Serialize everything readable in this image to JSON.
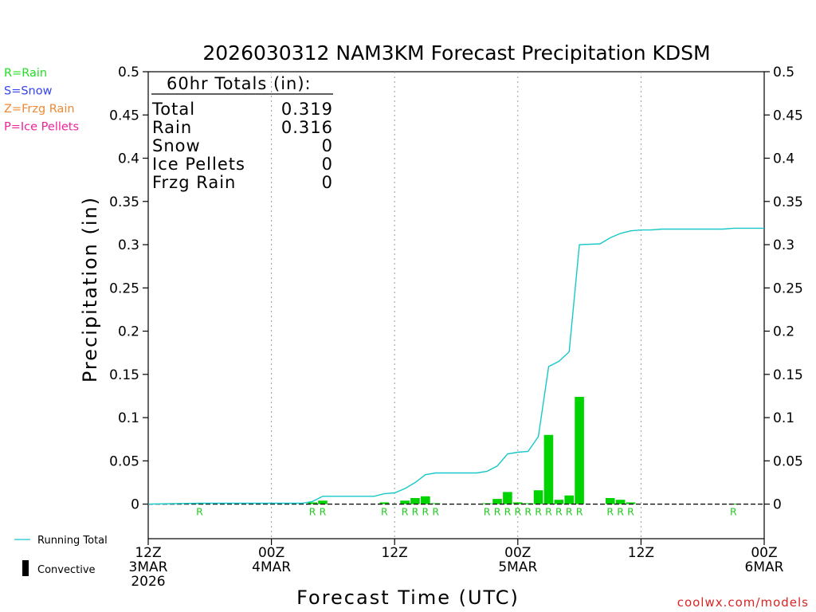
{
  "chart_data": {
    "type": "bar",
    "title": "2026030312 NAM3KM Forecast Precipitation KDSM",
    "ylabel": "Precipitation (in)",
    "xlabel": "Forecast Time (UTC)",
    "ylim": [
      -0.04,
      0.5
    ],
    "xlim_hours": [
      0,
      60
    ],
    "yticks": [
      0,
      0.05,
      0.1,
      0.15,
      0.2,
      0.25,
      0.3,
      0.35,
      0.4,
      0.45,
      0.5
    ],
    "ytick_labels": [
      "0",
      "0.05",
      "0.1",
      "0.15",
      "0.2",
      "0.25",
      "0.3",
      "0.35",
      "0.4",
      "0.45",
      "0.5"
    ],
    "x_ticks": [
      {
        "hour": 0,
        "lines": [
          "12Z",
          "3MAR",
          "2026"
        ]
      },
      {
        "hour": 12,
        "lines": [
          "00Z",
          "4MAR"
        ]
      },
      {
        "hour": 24,
        "lines": [
          "12Z"
        ]
      },
      {
        "hour": 36,
        "lines": [
          "00Z",
          "5MAR"
        ]
      },
      {
        "hour": 48,
        "lines": [
          "12Z"
        ]
      },
      {
        "hour": 60,
        "lines": [
          "00Z",
          "6MAR"
        ]
      }
    ],
    "gridlines_hours": [
      12,
      24,
      36,
      48
    ],
    "hourly_precip": [
      {
        "hour": 5,
        "value": 0.001,
        "type": "R"
      },
      {
        "hour": 16,
        "value": 0.002,
        "type": "R"
      },
      {
        "hour": 17,
        "value": 0.004,
        "type": "R"
      },
      {
        "hour": 23,
        "value": 0.002,
        "type": "R"
      },
      {
        "hour": 25,
        "value": 0.004,
        "type": "R"
      },
      {
        "hour": 26,
        "value": 0.007,
        "type": "R"
      },
      {
        "hour": 27,
        "value": 0.009,
        "type": "R"
      },
      {
        "hour": 28,
        "value": 0.001,
        "type": "R"
      },
      {
        "hour": 33,
        "value": 0.001,
        "type": "R"
      },
      {
        "hour": 34,
        "value": 0.006,
        "type": "R"
      },
      {
        "hour": 35,
        "value": 0.014,
        "type": "R"
      },
      {
        "hour": 36,
        "value": 0.002,
        "type": "R"
      },
      {
        "hour": 37,
        "value": 0.001,
        "type": "R"
      },
      {
        "hour": 38,
        "value": 0.016,
        "type": "R"
      },
      {
        "hour": 39,
        "value": 0.08,
        "type": "R"
      },
      {
        "hour": 40,
        "value": 0.005,
        "type": "R"
      },
      {
        "hour": 41,
        "value": 0.01,
        "type": "R"
      },
      {
        "hour": 42,
        "value": 0.124,
        "type": "R"
      },
      {
        "hour": 45,
        "value": 0.007,
        "type": "R"
      },
      {
        "hour": 46,
        "value": 0.005,
        "type": "R"
      },
      {
        "hour": 47,
        "value": 0.002,
        "type": "R"
      },
      {
        "hour": 57,
        "value": 0.0005,
        "type": "R"
      }
    ],
    "running_total": [
      [
        0,
        0.0
      ],
      [
        5,
        0.001
      ],
      [
        12,
        0.001
      ],
      [
        15,
        0.001
      ],
      [
        16,
        0.003
      ],
      [
        17,
        0.009
      ],
      [
        22,
        0.009
      ],
      [
        23,
        0.012
      ],
      [
        24,
        0.013
      ],
      [
        25,
        0.018
      ],
      [
        26,
        0.025
      ],
      [
        27,
        0.034
      ],
      [
        28,
        0.036
      ],
      [
        32,
        0.036
      ],
      [
        33,
        0.038
      ],
      [
        34,
        0.044
      ],
      [
        35,
        0.058
      ],
      [
        36,
        0.06
      ],
      [
        37,
        0.061
      ],
      [
        38,
        0.078
      ],
      [
        39,
        0.159
      ],
      [
        40,
        0.165
      ],
      [
        41,
        0.176
      ],
      [
        42,
        0.3
      ],
      [
        44,
        0.301
      ],
      [
        45,
        0.308
      ],
      [
        46,
        0.313
      ],
      [
        47,
        0.316
      ],
      [
        48,
        0.317
      ],
      [
        49,
        0.317
      ],
      [
        50,
        0.318
      ],
      [
        56,
        0.318
      ],
      [
        57,
        0.319
      ],
      [
        60,
        0.319
      ]
    ],
    "series": [
      {
        "name": "Running Total",
        "color": "#18c8c8"
      },
      {
        "name": "Convective",
        "color": "#000000"
      }
    ],
    "bar_color": "#00d400",
    "totals": {
      "header": "60hr Totals (in):",
      "rows": [
        {
          "label": "Total",
          "value": "0.319"
        },
        {
          "label": "Rain",
          "value": "0.316"
        },
        {
          "label": "Snow",
          "value": "0"
        },
        {
          "label": "Ice Pellets",
          "value": "0"
        },
        {
          "label": "Frzg Rain",
          "value": "0"
        }
      ]
    }
  },
  "type_legend": [
    {
      "text": "R=Rain",
      "color": "#22dd22"
    },
    {
      "text": "S=Snow",
      "color": "#3344ee"
    },
    {
      "text": "Z=Frzg Rain",
      "color": "#ee8833"
    },
    {
      "text": "P=Ice Pellets",
      "color": "#ee2299"
    }
  ],
  "bottom_legend": {
    "running_total": "Running Total",
    "convective": "Convective"
  },
  "credit": "coolwx.com/models"
}
